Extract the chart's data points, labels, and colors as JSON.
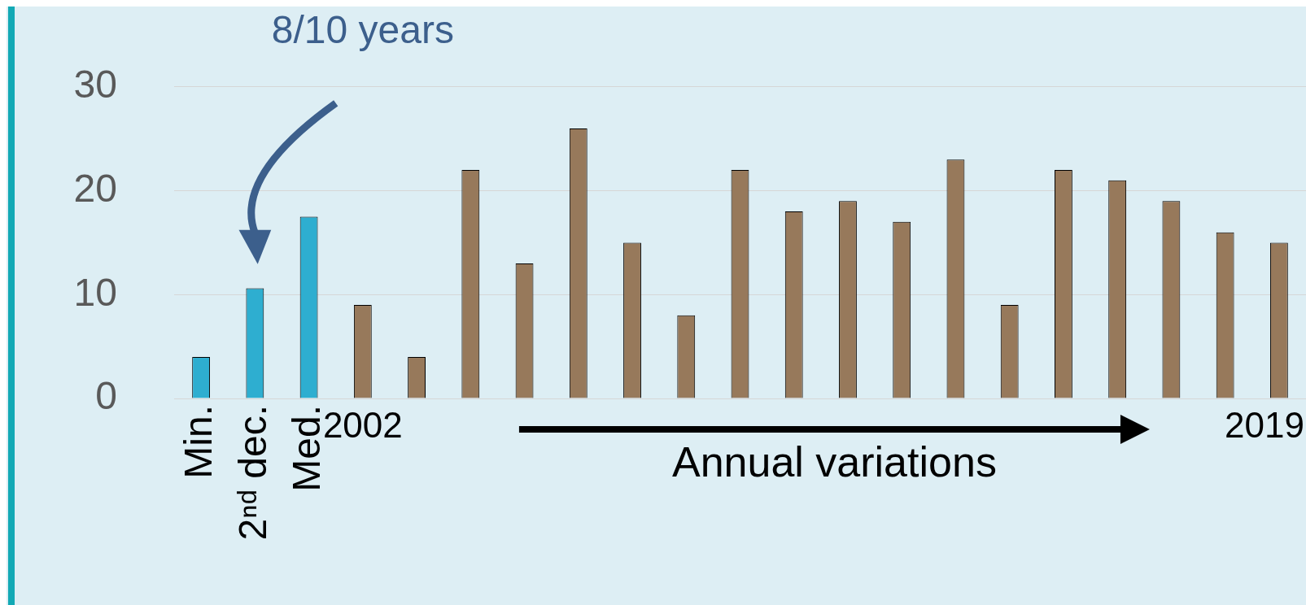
{
  "chart_data": {
    "type": "bar",
    "categories": [
      "Min.",
      "2ⁿᵈ dec.",
      "Med.",
      "2002",
      null,
      null,
      null,
      null,
      null,
      null,
      null,
      null,
      null,
      null,
      null,
      null,
      null,
      null,
      null,
      null,
      "2019"
    ],
    "values": [
      4,
      10.6,
      17.5,
      9,
      4,
      22,
      13,
      26,
      15,
      8,
      22,
      18,
      19,
      17,
      23,
      9,
      22,
      21,
      19,
      16,
      15
    ],
    "colors": [
      "#2eaed0",
      "#2eaed0",
      "#2eaed0",
      "#97795b",
      "#97795b",
      "#97795b",
      "#97795b",
      "#97795b",
      "#97795b",
      "#97795b",
      "#97795b",
      "#97795b",
      "#97795b",
      "#97795b",
      "#97795b",
      "#97795b",
      "#97795b",
      "#97795b",
      "#97795b",
      "#97795b",
      "#97795b"
    ],
    "ylim": [
      0,
      30
    ],
    "yticks": [
      0,
      10,
      20,
      30
    ],
    "grid": "y",
    "legend": false,
    "annotations": [
      "8/10 years",
      "Annual variations"
    ]
  }
}
